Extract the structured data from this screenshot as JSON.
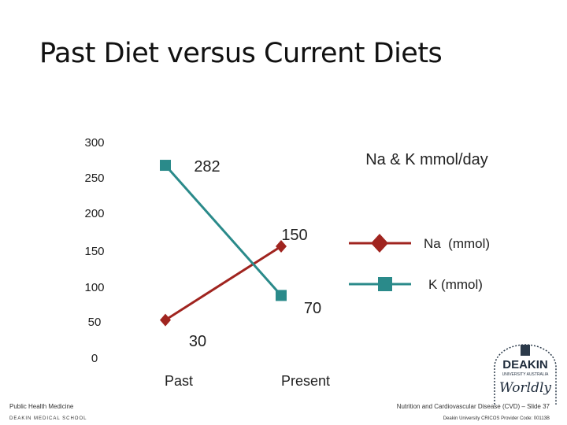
{
  "slide": {
    "title": "Past Diet versus Current Diets",
    "footer_left": "Public Health Medicine",
    "footer_left_sub": "DEAKIN MEDICAL SCHOOL",
    "footer_right": "Nutrition and Cardiovascular Disease (CVD) – Slide 37",
    "footer_right_sub": "Deakin University CRICOS Provider Code: 00113B",
    "logo_text_top": "DEAKIN",
    "logo_text_mid": "UNIVERSITY AUSTRALIA",
    "logo_text_bottom": "Worldly"
  },
  "chart_data": {
    "type": "line",
    "title": "Na & K mmol/day",
    "categories": [
      "Past",
      "Present"
    ],
    "ylim": [
      0,
      300
    ],
    "yticks": [
      "300",
      "250",
      "200",
      "150",
      "100",
      "50",
      "0"
    ],
    "grid": false,
    "legend_position": "right",
    "series": [
      {
        "name": "Na  (mmol)",
        "values": [
          30,
          150
        ],
        "labels": [
          "30",
          "150"
        ],
        "color": "#a0241f",
        "marker": "diamond"
      },
      {
        "name": "K (mmol)",
        "values": [
          282,
          70
        ],
        "labels": [
          "282",
          "70"
        ],
        "color": "#2a8a8a",
        "marker": "square"
      }
    ]
  }
}
